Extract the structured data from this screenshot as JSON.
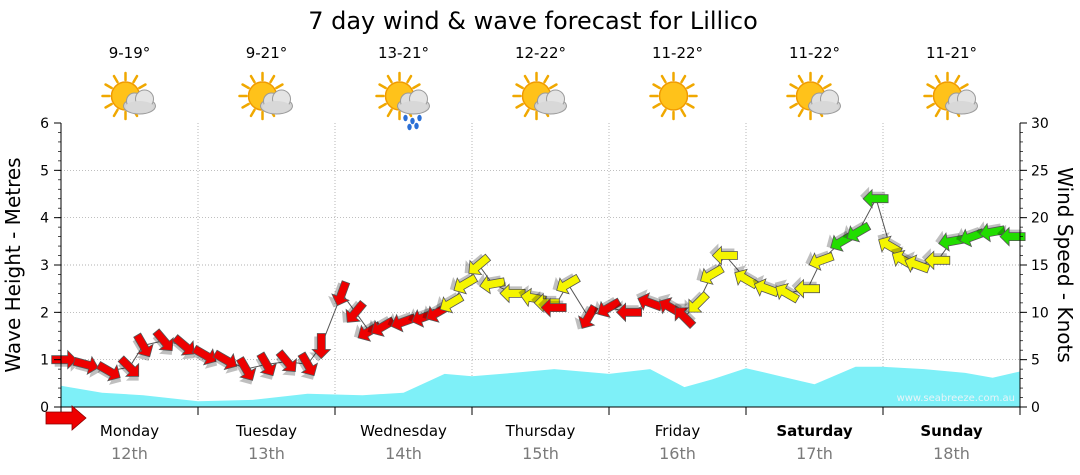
{
  "chart_data": {
    "type": "area",
    "title": "7 day wind & wave forecast for Lillico",
    "y_left": {
      "label": "Wave Height - Metres",
      "range": [
        0,
        6
      ],
      "ticks": [
        "0",
        "1",
        "2",
        "3",
        "4",
        "5",
        "6"
      ]
    },
    "y_right": {
      "label": "Wind Speed - Knots",
      "range": [
        0,
        30
      ],
      "ticks": [
        "0",
        "5",
        "10",
        "15",
        "20",
        "25",
        "30"
      ]
    },
    "x": {
      "range": [
        0,
        7
      ]
    },
    "days": [
      {
        "name": "Monday",
        "date": "12th",
        "temp": "9-19°",
        "icon": "partly-cloudy-icon",
        "bold": false
      },
      {
        "name": "Tuesday",
        "date": "13th",
        "temp": "9-21°",
        "icon": "partly-cloudy-icon",
        "bold": false
      },
      {
        "name": "Wednesday",
        "date": "14th",
        "temp": "13-21°",
        "icon": "rain-showers-icon",
        "bold": false
      },
      {
        "name": "Thursday",
        "date": "15th",
        "temp": "12-22°",
        "icon": "partly-cloudy-icon",
        "bold": false
      },
      {
        "name": "Friday",
        "date": "16th",
        "temp": "11-22°",
        "icon": "sunny-icon",
        "bold": false
      },
      {
        "name": "Saturday",
        "date": "17th",
        "temp": "11-22°",
        "icon": "partly-cloudy-icon",
        "bold": true
      },
      {
        "name": "Sunday",
        "date": "18th",
        "temp": "11-21°",
        "icon": "partly-cloudy-icon",
        "bold": true
      }
    ],
    "wave_series": {
      "color": "#7ef0f8",
      "x": [
        0,
        0.3,
        0.6,
        1.0,
        1.4,
        1.8,
        2.2,
        2.5,
        2.8,
        3.0,
        3.3,
        3.6,
        4.0,
        4.3,
        4.55,
        4.75,
        5.0,
        5.25,
        5.5,
        5.8,
        6.0,
        6.3,
        6.6,
        6.8,
        7.0
      ],
      "values": [
        0.45,
        0.3,
        0.25,
        0.12,
        0.15,
        0.28,
        0.25,
        0.3,
        0.7,
        0.65,
        0.72,
        0.8,
        0.7,
        0.8,
        0.42,
        0.58,
        0.82,
        0.65,
        0.48,
        0.85,
        0.85,
        0.8,
        0.72,
        0.62,
        0.75
      ]
    },
    "wind_series": {
      "colors": {
        "light": "#22dd00",
        "moderate": "#f5f500",
        "strong": "#ee0000"
      },
      "points": [
        {
          "x": 0.02,
          "speed": 5.0,
          "dir": 270,
          "level": "strong"
        },
        {
          "x": 0.18,
          "speed": 4.5,
          "dir": 285,
          "level": "strong"
        },
        {
          "x": 0.35,
          "speed": 3.8,
          "dir": 300,
          "level": "strong"
        },
        {
          "x": 0.5,
          "speed": 4.2,
          "dir": 315,
          "level": "strong"
        },
        {
          "x": 0.6,
          "speed": 6.5,
          "dir": 330,
          "level": "strong"
        },
        {
          "x": 0.75,
          "speed": 7.0,
          "dir": 320,
          "level": "strong"
        },
        {
          "x": 0.9,
          "speed": 6.5,
          "dir": 310,
          "level": "strong"
        },
        {
          "x": 1.05,
          "speed": 5.5,
          "dir": 300,
          "level": "strong"
        },
        {
          "x": 1.2,
          "speed": 5.0,
          "dir": 300,
          "level": "strong"
        },
        {
          "x": 1.35,
          "speed": 4.0,
          "dir": 330,
          "level": "strong"
        },
        {
          "x": 1.5,
          "speed": 4.5,
          "dir": 330,
          "level": "strong"
        },
        {
          "x": 1.65,
          "speed": 4.8,
          "dir": 320,
          "level": "strong"
        },
        {
          "x": 1.8,
          "speed": 4.5,
          "dir": 330,
          "level": "strong"
        },
        {
          "x": 1.9,
          "speed": 6.5,
          "dir": 0,
          "level": "strong"
        },
        {
          "x": 2.05,
          "speed": 12.0,
          "dir": 20,
          "level": "strong"
        },
        {
          "x": 2.15,
          "speed": 10.0,
          "dir": 40,
          "level": "strong"
        },
        {
          "x": 2.25,
          "speed": 8.0,
          "dir": 60,
          "level": "strong"
        },
        {
          "x": 2.35,
          "speed": 8.5,
          "dir": 60,
          "level": "strong"
        },
        {
          "x": 2.5,
          "speed": 9.0,
          "dir": 70,
          "level": "strong"
        },
        {
          "x": 2.65,
          "speed": 9.5,
          "dir": 70,
          "level": "strong"
        },
        {
          "x": 2.75,
          "speed": 10.0,
          "dir": 60,
          "level": "strong"
        },
        {
          "x": 2.85,
          "speed": 11.0,
          "dir": 60,
          "level": "moderate"
        },
        {
          "x": 2.95,
          "speed": 13.0,
          "dir": 60,
          "level": "moderate"
        },
        {
          "x": 3.05,
          "speed": 15.0,
          "dir": 50,
          "level": "moderate"
        },
        {
          "x": 3.15,
          "speed": 13.0,
          "dir": 80,
          "level": "moderate"
        },
        {
          "x": 3.3,
          "speed": 12.0,
          "dir": 90,
          "level": "moderate"
        },
        {
          "x": 3.45,
          "speed": 11.5,
          "dir": 100,
          "level": "moderate"
        },
        {
          "x": 3.55,
          "speed": 11.0,
          "dir": 90,
          "level": "moderate"
        },
        {
          "x": 3.6,
          "speed": 10.5,
          "dir": 90,
          "level": "strong"
        },
        {
          "x": 3.7,
          "speed": 13.0,
          "dir": 60,
          "level": "moderate"
        },
        {
          "x": 3.85,
          "speed": 9.5,
          "dir": 30,
          "level": "strong"
        },
        {
          "x": 4.0,
          "speed": 10.5,
          "dir": 60,
          "level": "strong"
        },
        {
          "x": 4.15,
          "speed": 10.0,
          "dir": 90,
          "level": "strong"
        },
        {
          "x": 4.3,
          "speed": 11.0,
          "dir": 110,
          "level": "strong"
        },
        {
          "x": 4.45,
          "speed": 10.5,
          "dir": 120,
          "level": "strong"
        },
        {
          "x": 4.55,
          "speed": 9.5,
          "dir": 135,
          "level": "strong"
        },
        {
          "x": 4.65,
          "speed": 11.0,
          "dir": 45,
          "level": "moderate"
        },
        {
          "x": 4.75,
          "speed": 14.0,
          "dir": 60,
          "level": "moderate"
        },
        {
          "x": 4.85,
          "speed": 16.0,
          "dir": 90,
          "level": "moderate"
        },
        {
          "x": 5.0,
          "speed": 13.5,
          "dir": 120,
          "level": "moderate"
        },
        {
          "x": 5.15,
          "speed": 12.5,
          "dir": 110,
          "level": "moderate"
        },
        {
          "x": 5.3,
          "speed": 12.0,
          "dir": 120,
          "level": "moderate"
        },
        {
          "x": 5.45,
          "speed": 12.5,
          "dir": 90,
          "level": "moderate"
        },
        {
          "x": 5.55,
          "speed": 15.5,
          "dir": 70,
          "level": "moderate"
        },
        {
          "x": 5.7,
          "speed": 17.5,
          "dir": 60,
          "level": "light"
        },
        {
          "x": 5.82,
          "speed": 18.5,
          "dir": 60,
          "level": "light"
        },
        {
          "x": 5.95,
          "speed": 22.0,
          "dir": 90,
          "level": "light"
        },
        {
          "x": 6.05,
          "speed": 17.0,
          "dir": 120,
          "level": "moderate"
        },
        {
          "x": 6.15,
          "speed": 15.5,
          "dir": 120,
          "level": "moderate"
        },
        {
          "x": 6.25,
          "speed": 15.0,
          "dir": 110,
          "level": "moderate"
        },
        {
          "x": 6.4,
          "speed": 15.5,
          "dir": 90,
          "level": "moderate"
        },
        {
          "x": 6.5,
          "speed": 17.5,
          "dir": 80,
          "level": "light"
        },
        {
          "x": 6.65,
          "speed": 18.0,
          "dir": 70,
          "level": "light"
        },
        {
          "x": 6.8,
          "speed": 18.5,
          "dir": 80,
          "level": "light"
        },
        {
          "x": 6.95,
          "speed": 18.0,
          "dir": 90,
          "level": "light"
        }
      ]
    },
    "grid": true,
    "watermark": "www.seabreeze.com.au"
  }
}
